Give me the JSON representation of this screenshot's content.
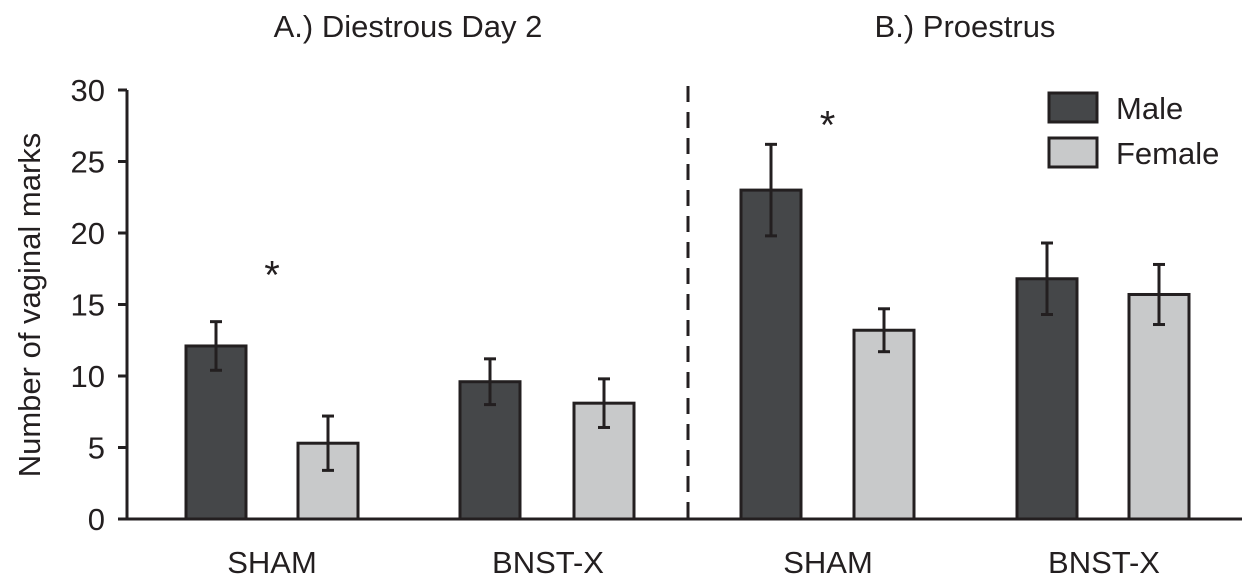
{
  "chart_data": {
    "type": "bar",
    "ylabel": "Number of vaginal marks",
    "ylim": [
      0,
      30
    ],
    "yticks": [
      0,
      5,
      10,
      15,
      20,
      25,
      30
    ],
    "grid": false,
    "legend_position": "top-right",
    "colors": {
      "Male": "#454749",
      "Female": "#c8c9ca"
    },
    "panels": [
      {
        "title": "A.) Diestrous Day 2",
        "categories": [
          "SHAM",
          "BNST-X"
        ],
        "series": [
          {
            "name": "Male",
            "values": [
              12.1,
              9.6
            ],
            "errors": [
              1.7,
              1.6
            ]
          },
          {
            "name": "Female",
            "values": [
              5.3,
              8.1
            ],
            "errors": [
              1.9,
              1.7
            ]
          }
        ],
        "annotations": [
          {
            "text": "*",
            "category": "SHAM",
            "y": 17.8
          }
        ]
      },
      {
        "title": "B.) Proestrus",
        "categories": [
          "SHAM",
          "BNST-X"
        ],
        "series": [
          {
            "name": "Male",
            "values": [
              23.0,
              16.8
            ],
            "errors": [
              3.2,
              2.5
            ]
          },
          {
            "name": "Female",
            "values": [
              13.2,
              15.7
            ],
            "errors": [
              1.5,
              2.1
            ]
          }
        ],
        "annotations": [
          {
            "text": "*",
            "category": "SHAM",
            "y": 28.3
          }
        ]
      }
    ]
  }
}
